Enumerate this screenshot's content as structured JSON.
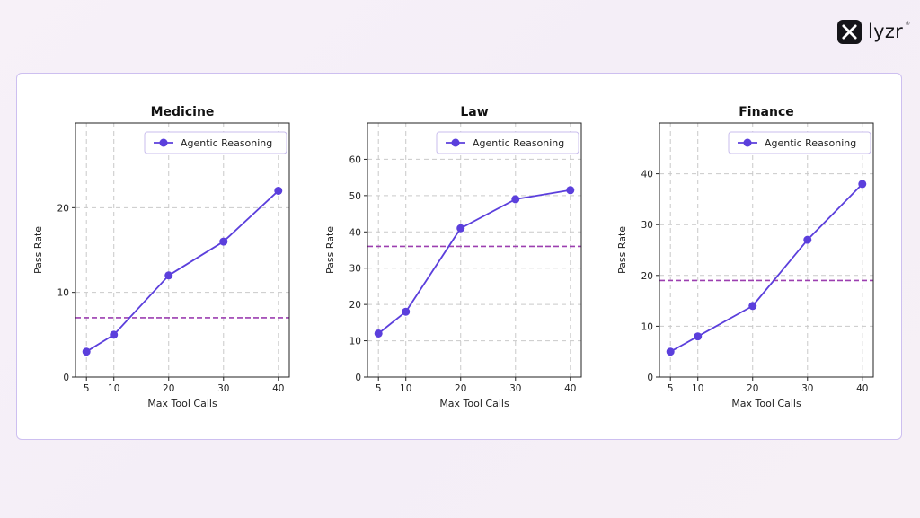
{
  "brand": {
    "name": "lyzr",
    "icon": "lyzr-logo-icon"
  },
  "colors": {
    "series": "#5b3fdc",
    "baseline": "#9c3fb0",
    "grid": "#c9c9c9",
    "card_border": "#cdbff0"
  },
  "chart_data": [
    {
      "type": "line",
      "title": "Medicine",
      "xlabel": "Max Tool Calls",
      "ylabel": "Pass Rate",
      "x": [
        5,
        10,
        20,
        30,
        40
      ],
      "xticks": [
        5,
        10,
        20,
        30,
        40
      ],
      "yticks": [
        0,
        10,
        20
      ],
      "xlim": [
        3,
        42
      ],
      "ylim": [
        0,
        30
      ],
      "grid": true,
      "legend_position": "top-right",
      "series": [
        {
          "name": "Agentic Reasoning",
          "values": [
            3,
            5,
            12,
            16,
            22
          ]
        }
      ],
      "baseline": 7
    },
    {
      "type": "line",
      "title": "Law",
      "xlabel": "Max Tool Calls",
      "ylabel": "Pass Rate",
      "x": [
        5,
        10,
        20,
        30,
        40
      ],
      "xticks": [
        5,
        10,
        20,
        30,
        40
      ],
      "yticks": [
        0,
        10,
        20,
        30,
        40,
        50,
        60
      ],
      "xlim": [
        3,
        42
      ],
      "ylim": [
        0,
        70
      ],
      "grid": true,
      "legend_position": "top-right",
      "series": [
        {
          "name": "Agentic Reasoning",
          "values": [
            12,
            18,
            41,
            49,
            51.5
          ]
        }
      ],
      "baseline": 36
    },
    {
      "type": "line",
      "title": "Finance",
      "xlabel": "Max Tool Calls",
      "ylabel": "Pass Rate",
      "x": [
        5,
        10,
        20,
        30,
        40
      ],
      "xticks": [
        5,
        10,
        20,
        30,
        40
      ],
      "yticks": [
        0,
        10,
        20,
        30,
        40
      ],
      "xlim": [
        3,
        42
      ],
      "ylim": [
        0,
        50
      ],
      "grid": true,
      "legend_position": "top-right",
      "series": [
        {
          "name": "Agentic Reasoning",
          "values": [
            5,
            8,
            14,
            27,
            38
          ]
        }
      ],
      "baseline": 19
    }
  ]
}
